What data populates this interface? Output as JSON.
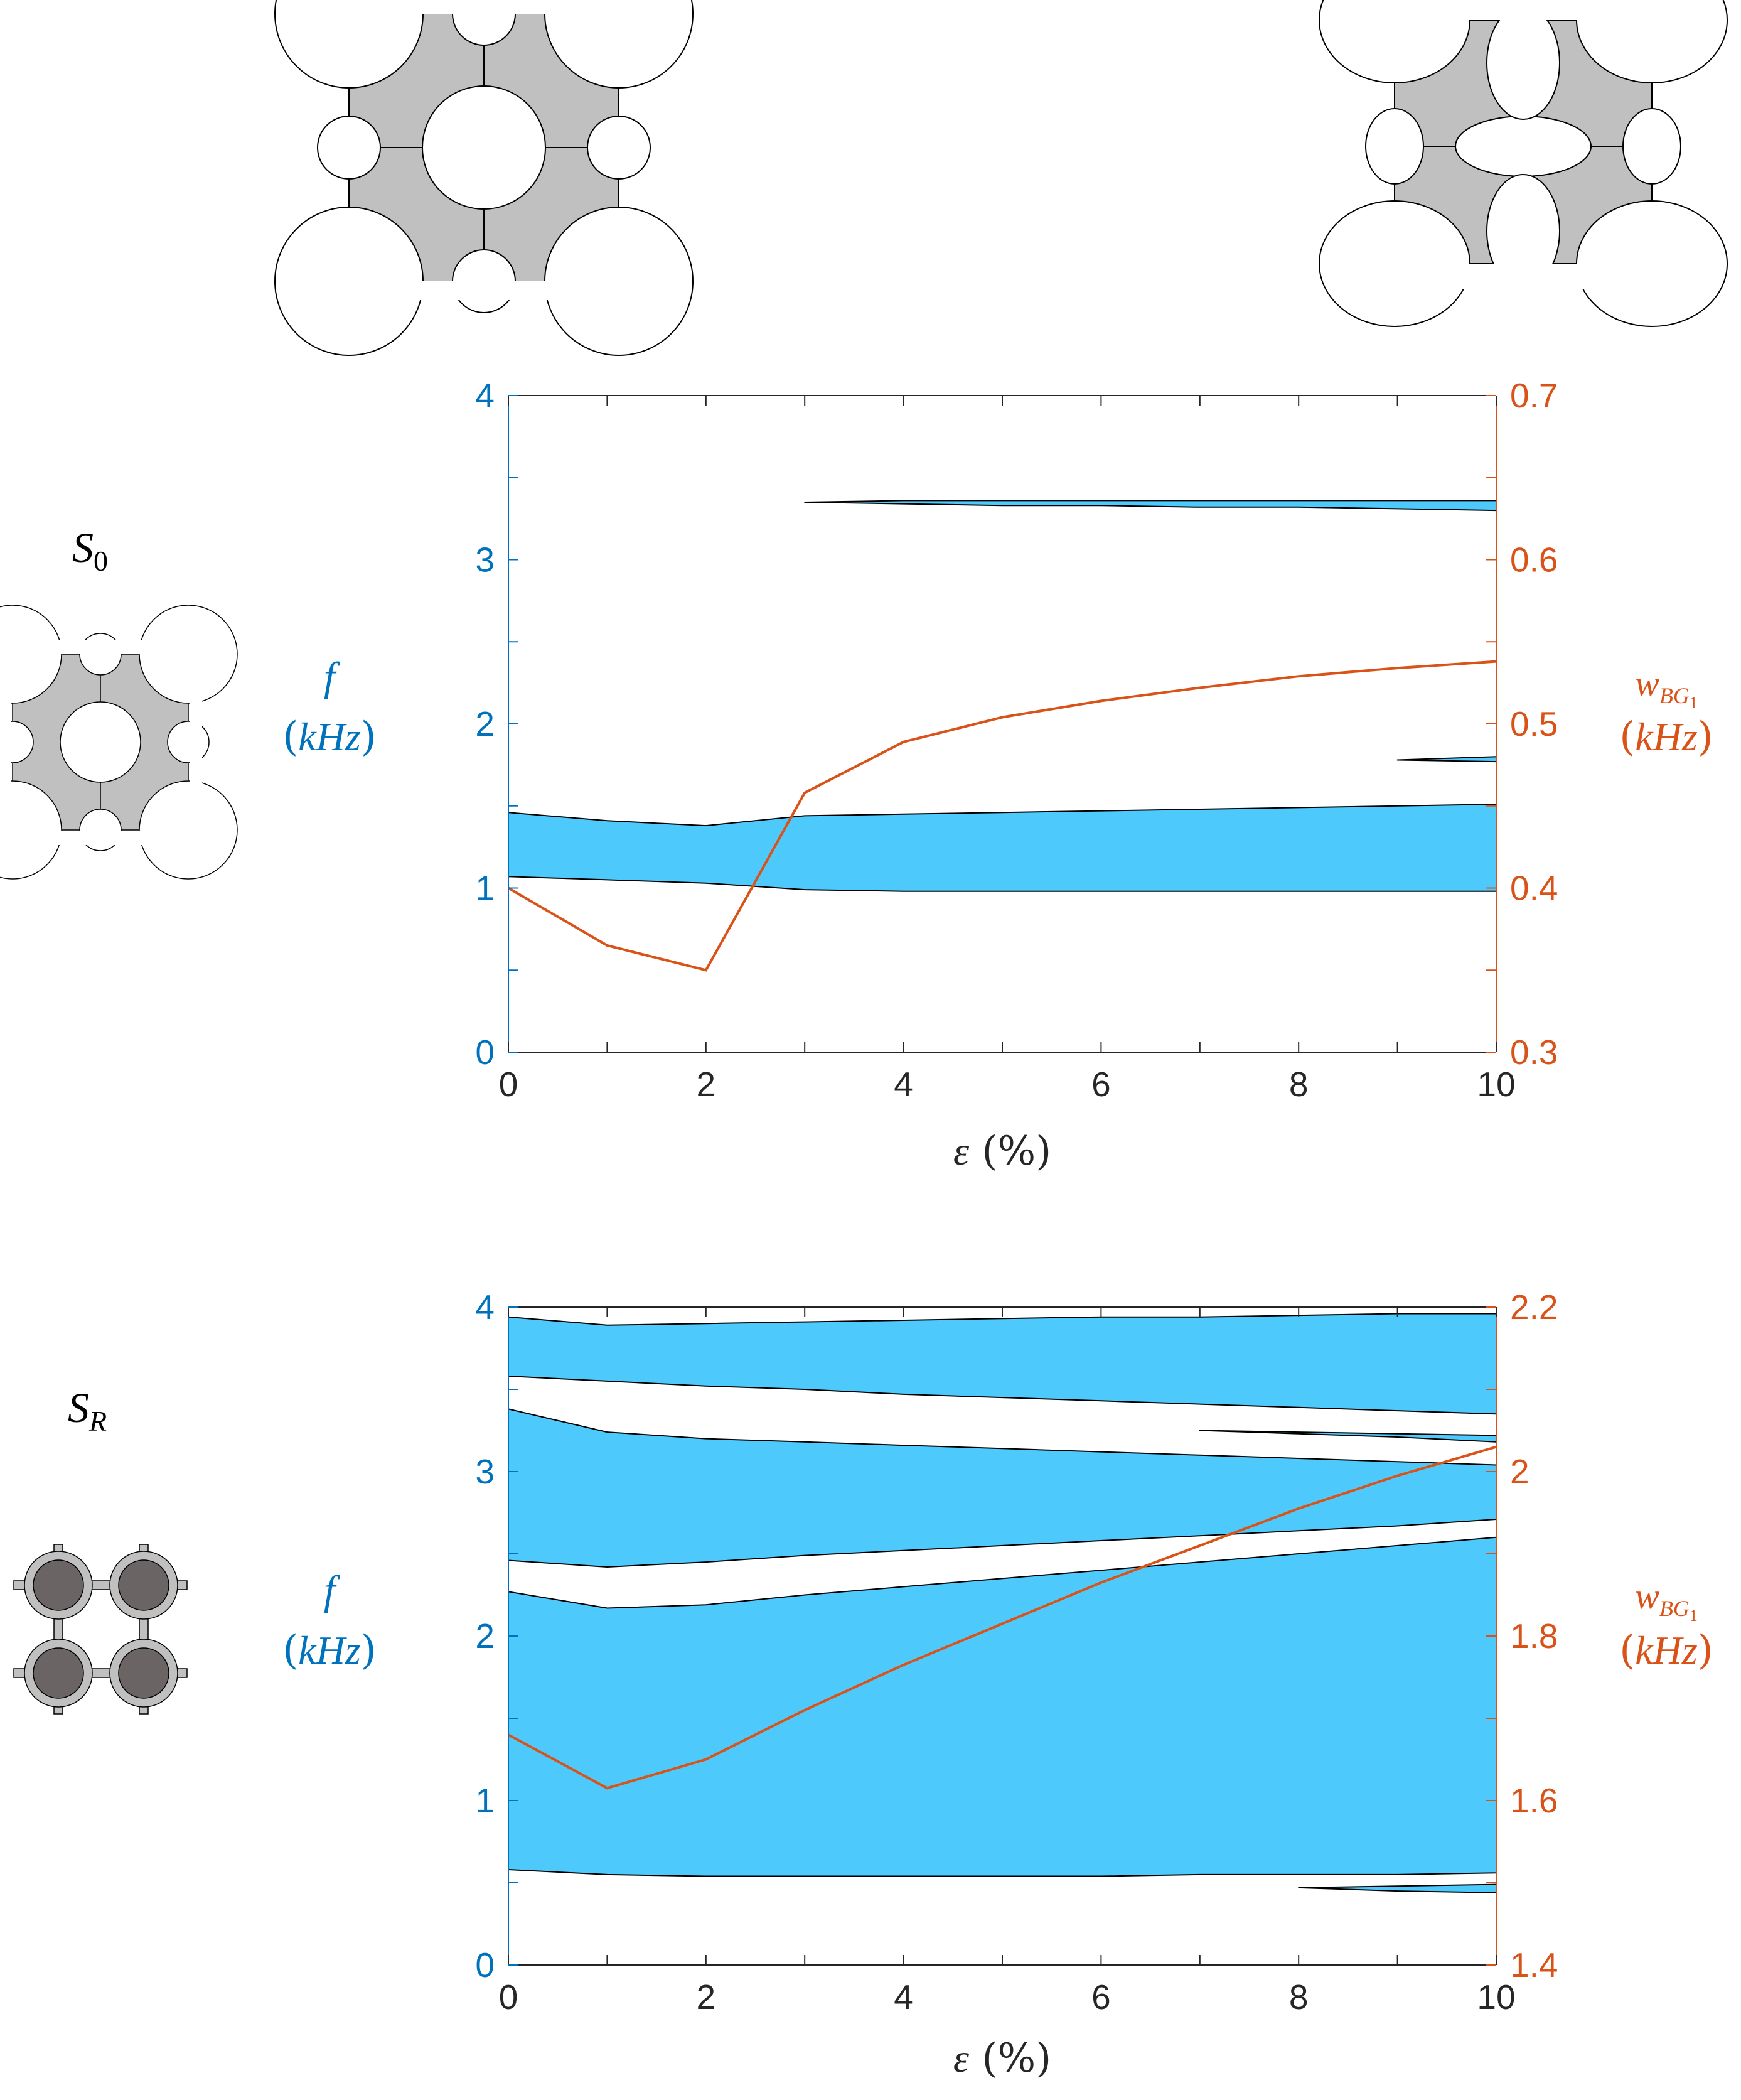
{
  "colors": {
    "band_fill": "#4dc9fc",
    "band_edge": "#000000",
    "left_axis": "#0072bd",
    "right_axis": "#d95319",
    "line": "#d95319",
    "cell_grey": "#c0c0c0",
    "inclusion_dark": "#6b6464"
  },
  "row_labels": {
    "s0": "S0",
    "sr": "SR"
  },
  "chart_data": [
    {
      "type": "area",
      "id": "S0",
      "xlabel": "ε (%)",
      "ylabel_left": "f (kHz)",
      "ylabel_right": "wBG1 (kHz)",
      "xlim": [
        0,
        10
      ],
      "ylim_left": [
        0,
        4
      ],
      "ylim_right": [
        0.3,
        0.7
      ],
      "x_ticks": [
        0,
        2,
        4,
        6,
        8,
        10
      ],
      "y_ticks_left": [
        0,
        1,
        2,
        3,
        4
      ],
      "y_ticks_right": [
        0.3,
        0.4,
        0.5,
        0.6,
        0.7
      ],
      "bands": [
        {
          "x": [
            0,
            1,
            2,
            3,
            4,
            5,
            6,
            7,
            8,
            9,
            10
          ],
          "lower": [
            1.07,
            1.05,
            1.03,
            0.99,
            0.98,
            0.98,
            0.98,
            0.98,
            0.98,
            0.98,
            0.98
          ],
          "upper": [
            1.46,
            1.41,
            1.38,
            1.44,
            1.45,
            1.46,
            1.47,
            1.48,
            1.49,
            1.5,
            1.51
          ]
        },
        {
          "x": [
            9,
            10
          ],
          "lower": [
            1.78,
            1.77
          ],
          "upper": [
            1.78,
            1.8
          ]
        },
        {
          "x": [
            3,
            4,
            5,
            6,
            7,
            8,
            9,
            10
          ],
          "lower": [
            3.35,
            3.34,
            3.33,
            3.33,
            3.32,
            3.32,
            3.31,
            3.3
          ],
          "upper": [
            3.35,
            3.36,
            3.36,
            3.36,
            3.36,
            3.36,
            3.36,
            3.36
          ]
        }
      ],
      "series": [
        {
          "x": [
            0,
            1,
            2,
            3,
            4,
            5,
            6,
            7,
            8,
            9,
            10
          ],
          "values": [
            0.4,
            0.365,
            0.35,
            0.458,
            0.489,
            0.504,
            0.514,
            0.522,
            0.529,
            0.534,
            0.538
          ]
        }
      ]
    },
    {
      "type": "area",
      "id": "SR",
      "xlabel": "ε (%)",
      "ylabel_left": "f (kHz)",
      "ylabel_right": "wBG1 (kHz)",
      "xlim": [
        0,
        10
      ],
      "ylim_left": [
        0,
        4
      ],
      "ylim_right": [
        1.4,
        2.2
      ],
      "x_ticks": [
        0,
        2,
        4,
        6,
        8,
        10
      ],
      "y_ticks_left": [
        0,
        1,
        2,
        3,
        4
      ],
      "y_ticks_right": [
        1.4,
        1.6,
        1.8,
        2,
        2.2
      ],
      "bands": [
        {
          "x": [
            8,
            9,
            10
          ],
          "lower": [
            0.47,
            0.45,
            0.44
          ],
          "upper": [
            0.47,
            0.48,
            0.49
          ]
        },
        {
          "x": [
            0,
            1,
            2,
            3,
            4,
            5,
            6,
            7,
            8,
            9,
            10
          ],
          "lower": [
            0.58,
            0.55,
            0.54,
            0.54,
            0.54,
            0.54,
            0.54,
            0.55,
            0.55,
            0.55,
            0.56
          ],
          "upper": [
            2.27,
            2.17,
            2.19,
            2.25,
            2.3,
            2.35,
            2.4,
            2.45,
            2.5,
            2.55,
            2.6
          ]
        },
        {
          "x": [
            0,
            1,
            2,
            3,
            4,
            5,
            6,
            7,
            8,
            9,
            10
          ],
          "lower": [
            2.46,
            2.42,
            2.45,
            2.49,
            2.52,
            2.55,
            2.58,
            2.61,
            2.64,
            2.67,
            2.71
          ],
          "upper": [
            3.38,
            3.24,
            3.2,
            3.18,
            3.16,
            3.14,
            3.12,
            3.1,
            3.08,
            3.06,
            3.04
          ]
        },
        {
          "x": [
            7,
            8,
            9,
            10
          ],
          "lower": [
            3.25,
            3.23,
            3.21,
            3.18
          ],
          "upper": [
            3.25,
            3.24,
            3.23,
            3.22
          ]
        },
        {
          "x": [
            0,
            1,
            2,
            3,
            4,
            5,
            6,
            7,
            8,
            9,
            10
          ],
          "lower": [
            3.58,
            3.55,
            3.52,
            3.5,
            3.47,
            3.45,
            3.43,
            3.41,
            3.39,
            3.37,
            3.35
          ],
          "upper": [
            3.94,
            3.89,
            3.9,
            3.91,
            3.92,
            3.93,
            3.94,
            3.94,
            3.95,
            3.96,
            3.96
          ]
        }
      ],
      "series": [
        {
          "x": [
            0,
            1,
            2,
            3,
            4,
            5,
            6,
            7,
            8,
            9,
            10
          ],
          "values": [
            1.68,
            1.615,
            1.65,
            1.71,
            1.765,
            1.815,
            1.865,
            1.91,
            1.955,
            1.995,
            2.03
          ]
        }
      ]
    }
  ]
}
